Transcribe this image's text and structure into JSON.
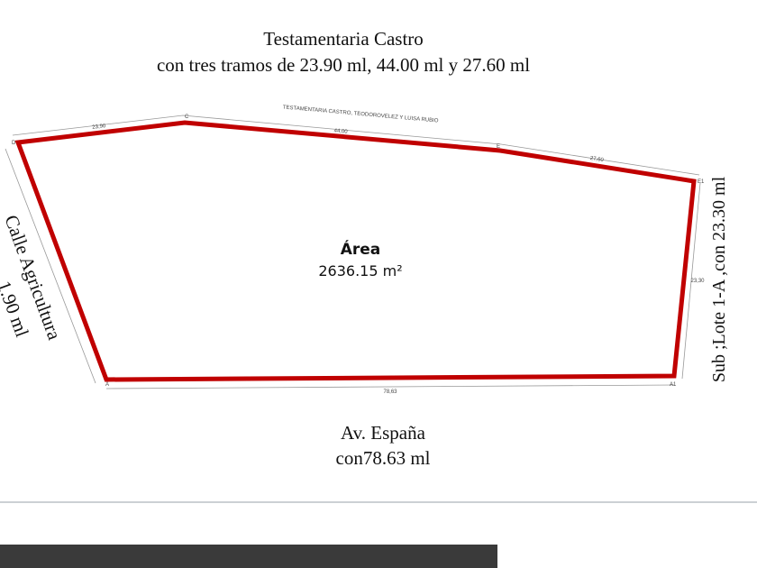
{
  "header": {
    "title": "Testamentaria Castro",
    "subtitle": "con tres tramos de 23.90 ml, 44.00 ml y 27.60 ml"
  },
  "plot": {
    "top_caption": "TESTAMENTARIA CASTRO, TEODOROVELEZ Y LUISA RUBIO",
    "dimensions": {
      "top_left": "23,90",
      "top_middle": "44,00",
      "top_right": "27,60",
      "right": "23,30",
      "bottom": "78,63"
    },
    "vertices": {
      "d": "D",
      "c": "C",
      "e": "E",
      "e1": "E1",
      "a1": "A1",
      "a": "A"
    },
    "area": {
      "label": "Área",
      "value": "2636.15 m²"
    }
  },
  "sides": {
    "left": {
      "name": "Calle Agricultura",
      "length": "1.90 ml"
    },
    "right": "Sub ;Lote 1-A ,con 23.30 ml",
    "bottom": {
      "name": "Av. España",
      "length": "con78.63 ml"
    }
  }
}
